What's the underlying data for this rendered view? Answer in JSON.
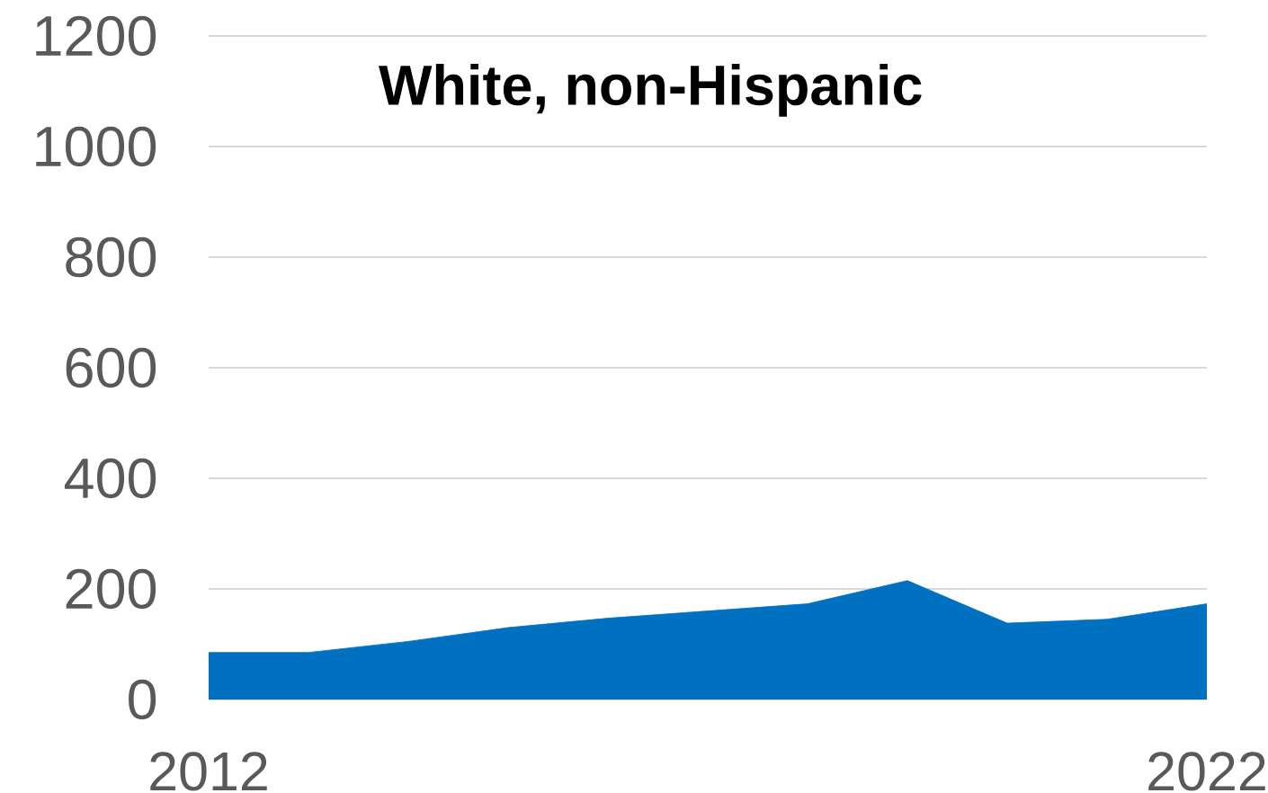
{
  "chart_data": {
    "type": "area",
    "title": "White, non-Hispanic",
    "x": [
      2012,
      2013,
      2014,
      2015,
      2016,
      2017,
      2018,
      2019,
      2020,
      2021,
      2022
    ],
    "values": [
      85,
      85,
      105,
      130,
      147,
      160,
      173,
      215,
      138,
      145,
      173
    ],
    "color": "#0070c0",
    "xlim": [
      2012,
      2022
    ],
    "xticks": [
      2012,
      2022
    ],
    "ylim": [
      0,
      1200
    ],
    "yticks": [
      0,
      200,
      400,
      600,
      800,
      1000,
      1200
    ],
    "grid": "y"
  }
}
